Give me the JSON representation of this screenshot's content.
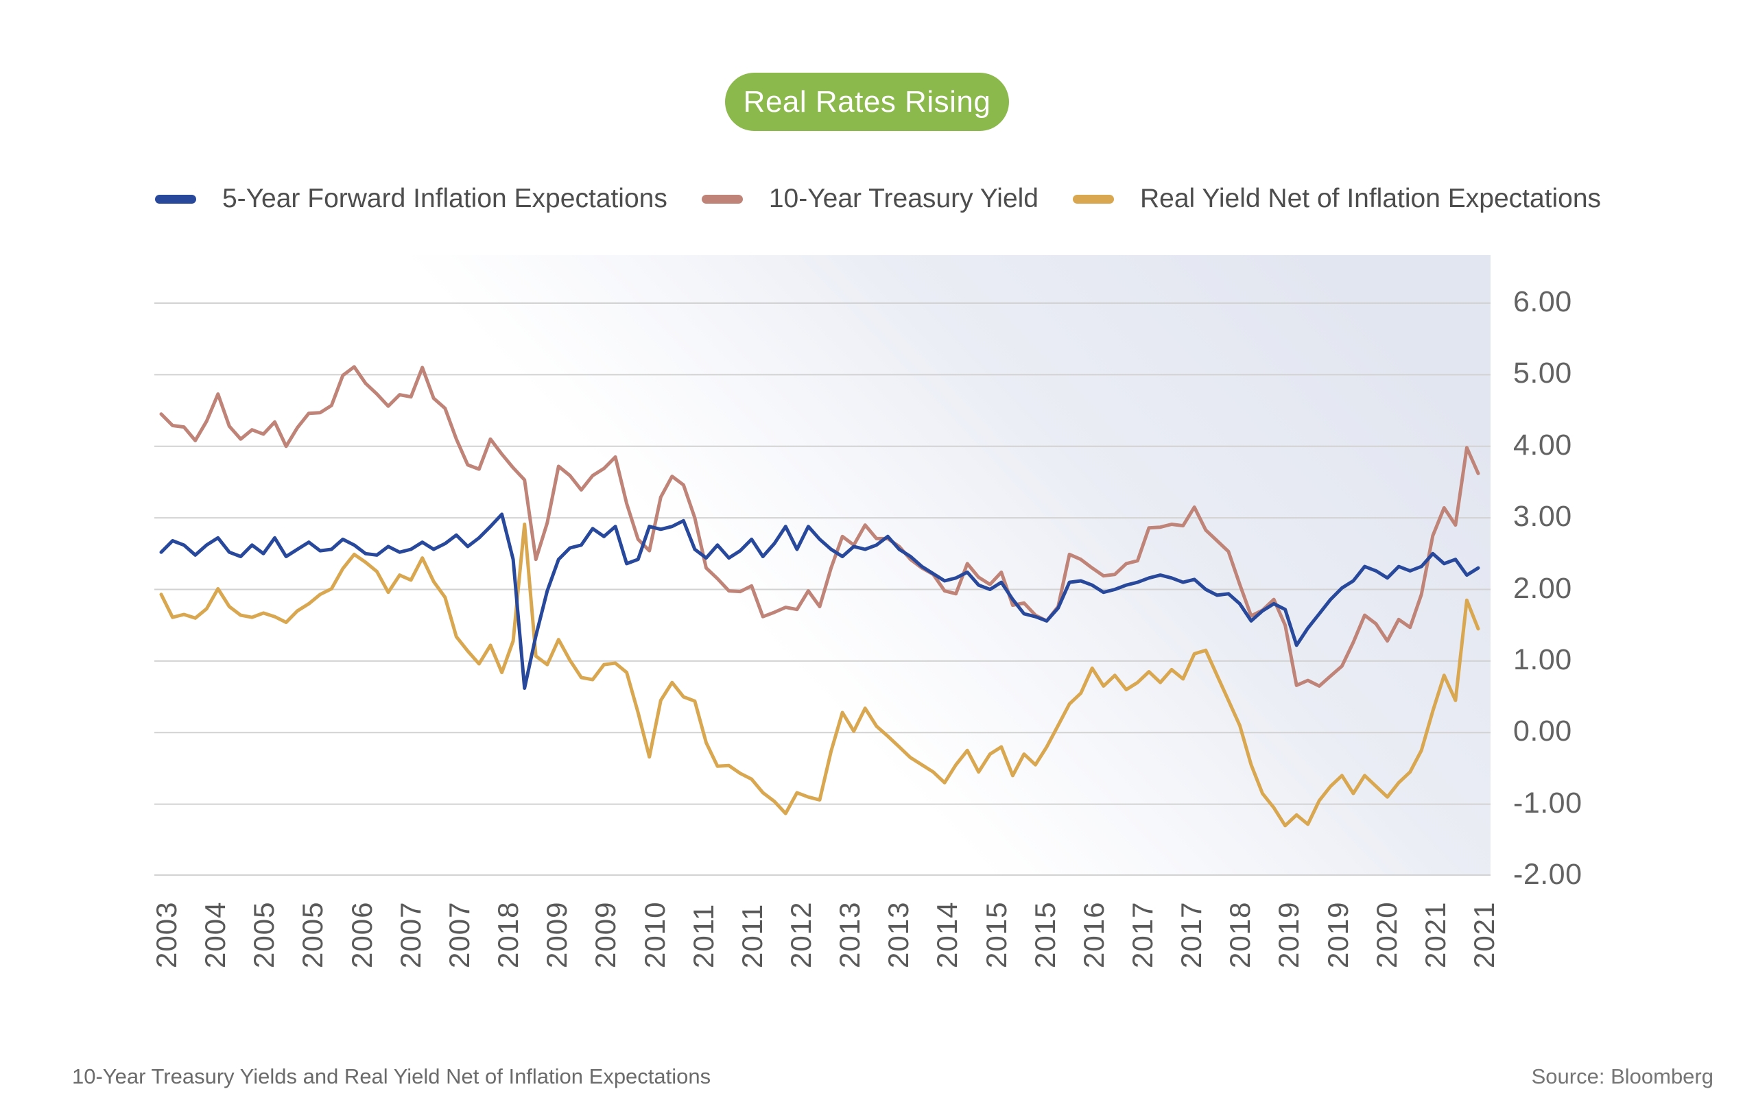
{
  "header": {
    "badge_label": "Real Rates Rising",
    "badge_color": "#8cb94c"
  },
  "footer": {
    "caption": "10-Year Treasury Yields and Real Yield Net of Inflation Expectations",
    "source": "Source: Bloomberg"
  },
  "chart_data": {
    "type": "line",
    "title": "Real Rates Rising",
    "xlabel": "",
    "ylabel": "",
    "ylim": [
      -2,
      6
    ],
    "grid": "horizontal",
    "legend_position": "top",
    "plot_background": "light blue-gray gradient intensifying toward right",
    "gridline_color": "#d2d2d2",
    "y_tick_labels": [
      "6.00",
      "5.00",
      "4.00",
      "3.00",
      "2.00",
      "1.00",
      "0.00",
      "-1.00",
      "-2.00"
    ],
    "x_tick_labels": [
      "2003",
      "2004",
      "2005",
      "2005",
      "2006",
      "2007",
      "2007",
      "2018",
      "2009",
      "2009",
      "2010",
      "2011",
      "2011",
      "2012",
      "2013",
      "2013",
      "2014",
      "2015",
      "2015",
      "2016",
      "2017",
      "2017",
      "2018",
      "2019",
      "2019",
      "2020",
      "2021",
      "2021"
    ],
    "x_note": "bimonthly samples, 2003 through 2021 (right edge)",
    "series": [
      {
        "name": "5-Year Forward Inflation Expectations",
        "color": "#27489b",
        "values": [
          2.52,
          2.68,
          2.62,
          2.48,
          2.62,
          2.72,
          2.52,
          2.46,
          2.62,
          2.5,
          2.72,
          2.46,
          2.56,
          2.66,
          2.54,
          2.56,
          2.7,
          2.62,
          2.5,
          2.48,
          2.6,
          2.52,
          2.56,
          2.66,
          2.56,
          2.64,
          2.76,
          2.6,
          2.72,
          2.88,
          3.05,
          2.42,
          0.62,
          1.35,
          1.98,
          2.42,
          2.58,
          2.62,
          2.85,
          2.74,
          2.88,
          2.36,
          2.42,
          2.88,
          2.84,
          2.88,
          2.96,
          2.56,
          2.44,
          2.62,
          2.44,
          2.54,
          2.7,
          2.46,
          2.64,
          2.88,
          2.56,
          2.88,
          2.7,
          2.56,
          2.46,
          2.6,
          2.56,
          2.62,
          2.74,
          2.56,
          2.46,
          2.32,
          2.22,
          2.12,
          2.16,
          2.24,
          2.06,
          2.0,
          2.1,
          1.86,
          1.66,
          1.62,
          1.56,
          1.74,
          2.1,
          2.12,
          2.06,
          1.96,
          2.0,
          2.06,
          2.1,
          2.16,
          2.2,
          2.16,
          2.1,
          2.14,
          2.0,
          1.92,
          1.94,
          1.8,
          1.56,
          1.7,
          1.8,
          1.72,
          1.22,
          1.46,
          1.66,
          1.86,
          2.02,
          2.12,
          2.32,
          2.26,
          2.16,
          2.32,
          2.26,
          2.32,
          2.5,
          2.36,
          2.42,
          2.2,
          2.3
        ]
      },
      {
        "name": "10-Year Treasury Yield",
        "color": "#bf8377",
        "values": [
          4.45,
          4.29,
          4.27,
          4.08,
          4.35,
          4.73,
          4.28,
          4.1,
          4.23,
          4.17,
          4.34,
          4.0,
          4.26,
          4.46,
          4.47,
          4.57,
          4.99,
          5.11,
          4.88,
          4.73,
          4.56,
          4.72,
          4.69,
          5.1,
          4.67,
          4.53,
          4.1,
          3.74,
          3.68,
          4.1,
          3.89,
          3.7,
          3.53,
          2.42,
          2.93,
          3.72,
          3.59,
          3.39,
          3.59,
          3.69,
          3.85,
          3.2,
          2.7,
          2.54,
          3.29,
          3.58,
          3.46,
          3.0,
          2.3,
          2.15,
          1.98,
          1.97,
          2.05,
          1.62,
          1.68,
          1.75,
          1.72,
          1.98,
          1.76,
          2.3,
          2.74,
          2.62,
          2.9,
          2.71,
          2.71,
          2.6,
          2.42,
          2.3,
          2.21,
          1.98,
          1.94,
          2.36,
          2.17,
          2.07,
          2.24,
          1.78,
          1.81,
          1.64,
          1.56,
          1.76,
          2.49,
          2.42,
          2.3,
          2.19,
          2.21,
          2.36,
          2.4,
          2.86,
          2.87,
          2.91,
          2.89,
          3.15,
          2.83,
          2.68,
          2.53,
          2.07,
          1.63,
          1.71,
          1.86,
          1.5,
          0.66,
          0.73,
          0.65,
          0.79,
          0.93,
          1.26,
          1.64,
          1.52,
          1.28,
          1.58,
          1.47,
          1.93,
          2.75,
          3.14,
          2.9,
          3.98,
          3.62
        ]
      },
      {
        "name": "Real Yield Net of Inflation Expectations",
        "color": "#d8a750",
        "values": [
          1.93,
          1.61,
          1.65,
          1.6,
          1.73,
          2.01,
          1.76,
          1.64,
          1.61,
          1.67,
          1.62,
          1.54,
          1.7,
          1.8,
          1.93,
          2.01,
          2.29,
          2.49,
          2.38,
          2.25,
          1.96,
          2.2,
          2.13,
          2.44,
          2.11,
          1.89,
          1.34,
          1.14,
          0.96,
          1.22,
          0.84,
          1.28,
          2.91,
          1.07,
          0.95,
          1.3,
          1.01,
          0.77,
          0.74,
          0.95,
          0.97,
          0.84,
          0.28,
          -0.34,
          0.45,
          0.7,
          0.5,
          0.44,
          -0.14,
          -0.47,
          -0.46,
          -0.57,
          -0.65,
          -0.84,
          -0.96,
          -1.13,
          -0.84,
          -0.9,
          -0.94,
          -0.26,
          0.28,
          0.02,
          0.34,
          0.09,
          -0.05,
          -0.2,
          -0.35,
          -0.45,
          -0.55,
          -0.7,
          -0.45,
          -0.25,
          -0.55,
          -0.3,
          -0.2,
          -0.6,
          -0.3,
          -0.45,
          -0.2,
          0.1,
          0.4,
          0.55,
          0.9,
          0.65,
          0.8,
          0.6,
          0.7,
          0.85,
          0.7,
          0.88,
          0.75,
          1.1,
          1.15,
          0.8,
          0.45,
          0.1,
          -0.45,
          -0.85,
          -1.05,
          -1.3,
          -1.15,
          -1.28,
          -0.95,
          -0.75,
          -0.6,
          -0.85,
          -0.6,
          -0.75,
          -0.9,
          -0.7,
          -0.55,
          -0.25,
          0.3,
          0.8,
          0.45,
          1.85,
          1.45
        ]
      }
    ]
  }
}
